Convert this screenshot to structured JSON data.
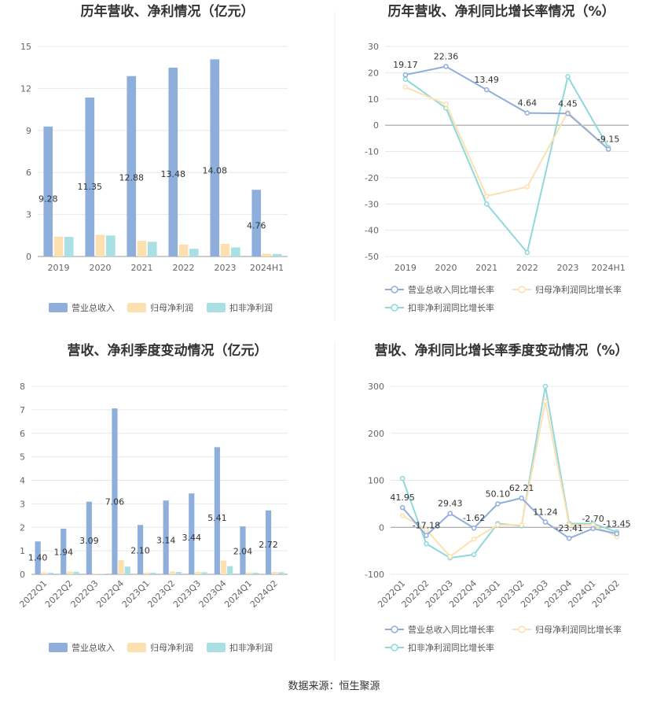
{
  "colors": {
    "revenue": "#8eaedc",
    "net_profit": "#fde0b0",
    "deducted_profit": "#a8e0e4",
    "revenue_line": "#8eaedc",
    "net_profit_line": "#fde0b0",
    "deducted_profit_line": "#8fd8dc",
    "grid": "#e8e8e8",
    "axis": "#999999"
  },
  "source": "数据来源：恒生聚源",
  "chart_data": [
    {
      "id": "annual_bar",
      "type": "bar",
      "title": "历年营收、净利情况（亿元）",
      "categories": [
        "2019",
        "2020",
        "2021",
        "2022",
        "2023",
        "2024H1"
      ],
      "ylim": [
        0,
        15
      ],
      "yticks": [
        0,
        3,
        6,
        9,
        12,
        15
      ],
      "series": [
        {
          "name": "营业总收入",
          "key": "revenue",
          "values": [
            9.28,
            11.35,
            12.88,
            13.48,
            14.08,
            4.76
          ],
          "labels": [
            "9.28",
            "11.35",
            "12.88",
            "13.48",
            "14.08",
            "4.76"
          ]
        },
        {
          "name": "归母净利润",
          "key": "net_profit",
          "values": [
            1.42,
            1.55,
            1.12,
            0.85,
            0.9,
            0.2
          ]
        },
        {
          "name": "扣非净利润",
          "key": "deducted_profit",
          "values": [
            1.4,
            1.5,
            1.05,
            0.55,
            0.65,
            0.18
          ]
        }
      ]
    },
    {
      "id": "annual_line",
      "type": "line",
      "title": "历年营收、净利同比增长率情况（%）",
      "categories": [
        "2019",
        "2020",
        "2021",
        "2022",
        "2023",
        "2024H1"
      ],
      "ylim": [
        -50,
        30
      ],
      "yticks": [
        -50,
        -40,
        -30,
        -20,
        -10,
        0,
        10,
        20,
        30
      ],
      "series": [
        {
          "name": "营业总收入同比增长率",
          "key": "revenue_line",
          "values": [
            19.17,
            22.36,
            13.49,
            4.64,
            4.45,
            -9.15
          ],
          "labels": [
            "19.17",
            "22.36",
            "13.49",
            "4.64",
            "4.45",
            "-9.15"
          ]
        },
        {
          "name": "归母净利润同比增长率",
          "key": "net_profit_line",
          "values": [
            14.5,
            8.0,
            -27.0,
            -23.5,
            5.0,
            -9.0
          ]
        },
        {
          "name": "扣非净利润同比增长率",
          "key": "deducted_profit_line",
          "values": [
            17.5,
            6.5,
            -30.0,
            -48.5,
            18.5,
            -8.5
          ]
        }
      ]
    },
    {
      "id": "quarterly_bar",
      "type": "bar",
      "title": "营收、净利季度变动情况（亿元）",
      "categories": [
        "2022Q1",
        "2022Q2",
        "2022Q3",
        "2022Q4",
        "2023Q1",
        "2023Q2",
        "2023Q3",
        "2023Q4",
        "2024Q1",
        "2024Q2"
      ],
      "ylim": [
        0,
        8
      ],
      "yticks": [
        0,
        1,
        2,
        3,
        4,
        5,
        6,
        7,
        8
      ],
      "series": [
        {
          "name": "营业总收入",
          "key": "revenue",
          "values": [
            1.4,
            1.94,
            3.09,
            7.06,
            2.1,
            3.14,
            3.44,
            5.41,
            2.04,
            2.72
          ],
          "labels": [
            "1.40",
            "1.94",
            "3.09",
            "7.06",
            "2.10",
            "3.14",
            "3.44",
            "5.41",
            "2.04",
            "2.72"
          ]
        },
        {
          "name": "归母净利润",
          "key": "net_profit",
          "values": [
            0.08,
            0.12,
            0.02,
            0.6,
            0.08,
            0.12,
            0.1,
            0.58,
            0.08,
            0.1
          ]
        },
        {
          "name": "扣非净利润",
          "key": "deducted_profit",
          "values": [
            0.07,
            0.11,
            0.02,
            0.33,
            0.07,
            0.1,
            0.09,
            0.35,
            0.07,
            0.09
          ]
        }
      ]
    },
    {
      "id": "quarterly_line",
      "type": "line",
      "title": "营收、净利同比增长率季度变动情况（%）",
      "categories": [
        "2022Q1",
        "2022Q2",
        "2022Q3",
        "2022Q4",
        "2023Q1",
        "2023Q2",
        "2023Q3",
        "2023Q4",
        "2024Q1",
        "2024Q2"
      ],
      "ylim": [
        -100,
        300
      ],
      "yticks": [
        -100,
        0,
        100,
        200,
        300
      ],
      "series": [
        {
          "name": "营业总收入同比增长率",
          "key": "revenue_line",
          "values": [
            41.95,
            -17.18,
            29.43,
            -1.62,
            50.1,
            62.21,
            11.24,
            -23.41,
            -2.7,
            -13.45
          ],
          "labels": [
            "41.95",
            "-17.18",
            "29.43",
            "-1.62",
            "50.10",
            "62.21",
            "11.24",
            "-23.41",
            "-2.70",
            "-13.45"
          ]
        },
        {
          "name": "归母净利润同比增长率",
          "key": "net_profit_line",
          "values": [
            25,
            -5,
            -62,
            -25,
            5,
            5,
            268,
            5,
            5,
            -20
          ]
        },
        {
          "name": "扣非净利润同比增长率",
          "key": "deducted_profit_line",
          "values": [
            104,
            -35,
            -65,
            -58,
            8,
            3,
            300,
            8,
            8,
            -10
          ]
        }
      ]
    }
  ]
}
